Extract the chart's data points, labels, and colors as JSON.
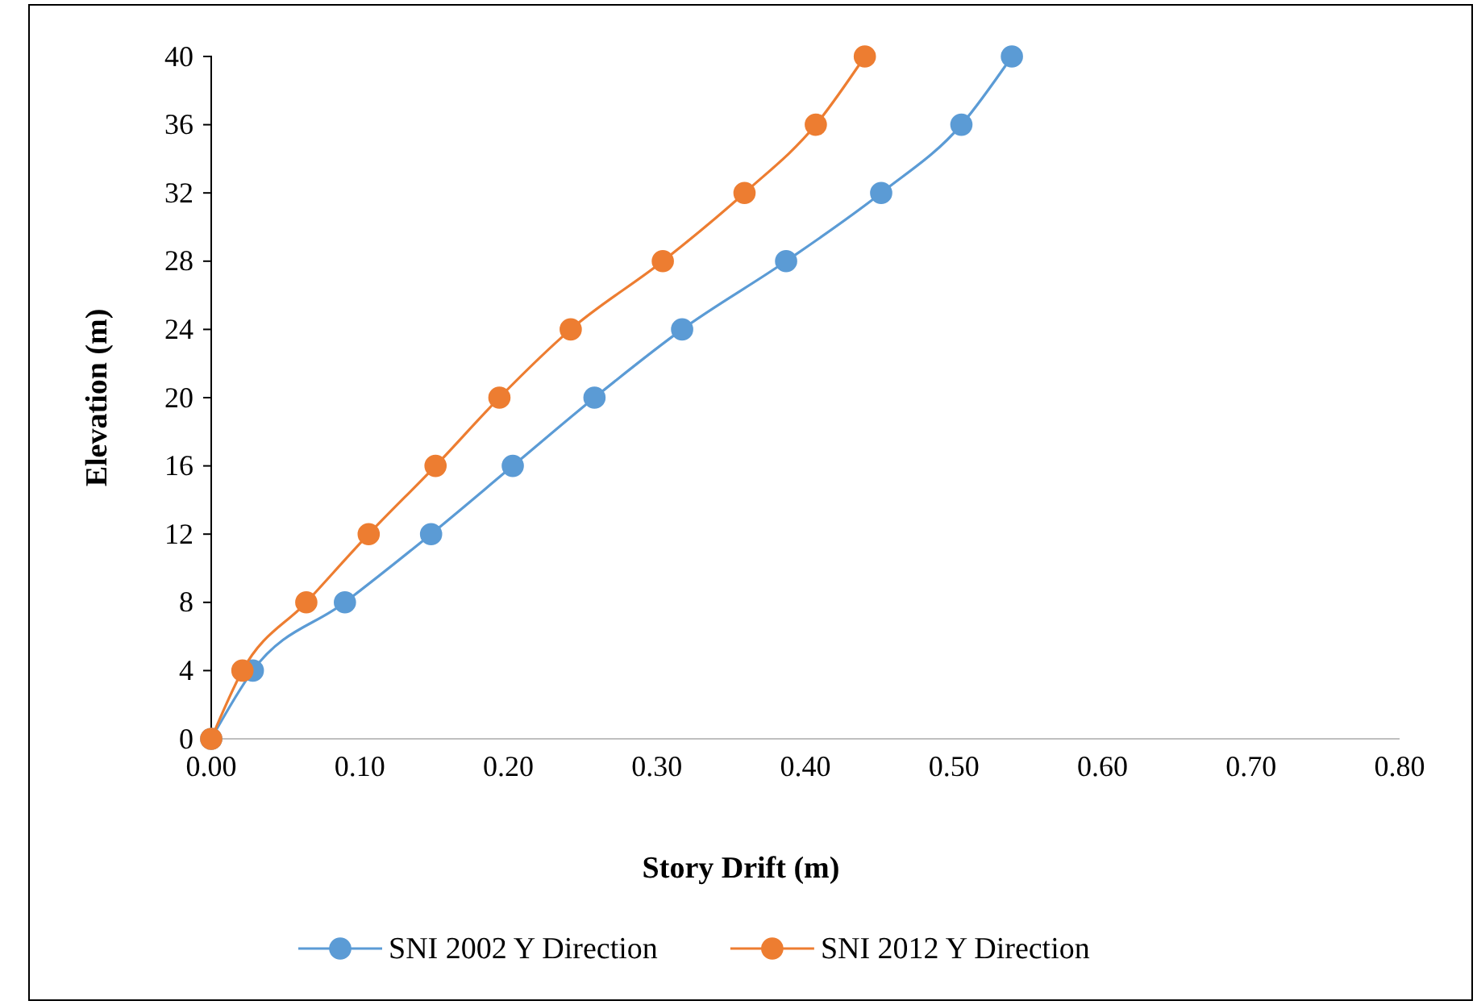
{
  "chart_data": {
    "type": "line",
    "xlabel": "Story Drift (m)",
    "ylabel": "Elevation  (m)",
    "xlim": [
      0,
      0.8
    ],
    "xticks": [
      {
        "value": 0,
        "label": "0.00"
      },
      {
        "value": 0.1,
        "label": "0.10"
      },
      {
        "value": 0.2,
        "label": "0.20"
      },
      {
        "value": 0.3,
        "label": "0.30"
      },
      {
        "value": 0.4,
        "label": "0.40"
      },
      {
        "value": 0.5,
        "label": "0.50"
      },
      {
        "value": 0.6,
        "label": "0.60"
      },
      {
        "value": 0.7,
        "label": "0.70"
      },
      {
        "value": 0.8,
        "label": "0.80"
      }
    ],
    "ylim": [
      0,
      40
    ],
    "yticks": [
      0,
      4,
      8,
      12,
      16,
      20,
      24,
      28,
      32,
      36,
      40
    ],
    "grid": false,
    "legend": "bottom",
    "marker": "circle",
    "line_style": "solid",
    "series": [
      {
        "name": "SNI 2002 Y Direction",
        "color": "#5b9bd5",
        "x": [
          0,
          0.028,
          0.09,
          0.148,
          0.203,
          0.258,
          0.317,
          0.387,
          0.451,
          0.505,
          0.539
        ],
        "values": [
          0,
          4,
          8,
          12,
          16,
          20,
          24,
          28,
          32,
          36,
          40
        ]
      },
      {
        "name": "SNI 2012 Y Direction",
        "color": "#ed7d31",
        "x": [
          0,
          0.021,
          0.064,
          0.106,
          0.151,
          0.194,
          0.242,
          0.304,
          0.359,
          0.407,
          0.44
        ],
        "values": [
          0,
          4,
          8,
          12,
          16,
          20,
          24,
          28,
          32,
          36,
          40
        ]
      }
    ]
  }
}
